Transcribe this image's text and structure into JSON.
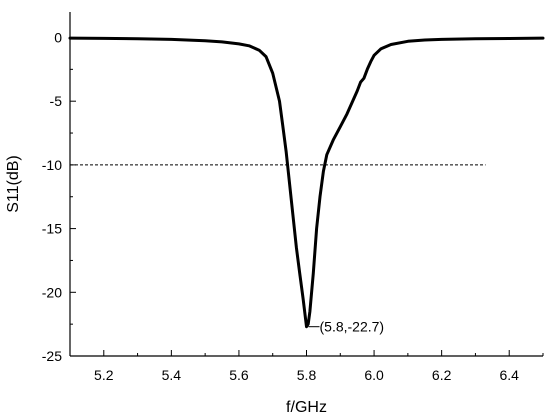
{
  "chart_data": {
    "type": "line",
    "xlabel": "f/GHz",
    "ylabel": "S11(dB)",
    "xlim": [
      5.1,
      6.5
    ],
    "ylim": [
      -25,
      2
    ],
    "xticks": [
      5.2,
      5.4,
      5.6,
      5.8,
      6.0,
      6.2,
      6.4
    ],
    "xtick_labels": [
      "5.2",
      "5.4",
      "5.6",
      "5.8",
      "6.0",
      "6.2",
      "6.4"
    ],
    "yticks": [
      0,
      -5,
      -10,
      -15,
      -20,
      -25
    ],
    "ytick_labels": [
      "0",
      "-5",
      "-10",
      "-15",
      "-20",
      "-25"
    ],
    "grid": false,
    "series": [
      {
        "x": [
          5.1,
          5.2,
          5.3,
          5.4,
          5.5,
          5.55,
          5.6,
          5.63,
          5.66,
          5.68,
          5.7,
          5.72,
          5.73,
          5.74,
          5.75,
          5.76,
          5.77,
          5.78,
          5.79,
          5.8,
          5.805,
          5.81,
          5.82,
          5.83,
          5.84,
          5.85,
          5.86,
          5.88,
          5.9,
          5.92,
          5.94,
          5.95,
          5.96,
          5.97,
          5.98,
          5.99,
          6.0,
          6.02,
          6.05,
          6.1,
          6.15,
          6.2,
          6.3,
          6.4,
          6.5
        ],
        "y": [
          -0.05,
          -0.07,
          -0.1,
          -0.15,
          -0.25,
          -0.35,
          -0.5,
          -0.65,
          -1.0,
          -1.5,
          -2.8,
          -5.0,
          -7.0,
          -9.0,
          -11.5,
          -14.0,
          -16.5,
          -18.5,
          -20.5,
          -22.7,
          -22.5,
          -21.5,
          -18.5,
          -15.0,
          -12.5,
          -10.5,
          -9.2,
          -8.0,
          -7.0,
          -6.0,
          -4.8,
          -4.2,
          -3.5,
          -3.2,
          -2.5,
          -1.9,
          -1.4,
          -0.9,
          -0.55,
          -0.3,
          -0.2,
          -0.15,
          -0.1,
          -0.08,
          -0.05
        ]
      }
    ],
    "reference_line": {
      "y": -10,
      "x_start": 5.1,
      "x_end": 6.33,
      "style": "dashed"
    },
    "annotations": [
      {
        "text": "(5.8,-22.7)",
        "x": 5.8,
        "y": -22.7
      }
    ]
  }
}
